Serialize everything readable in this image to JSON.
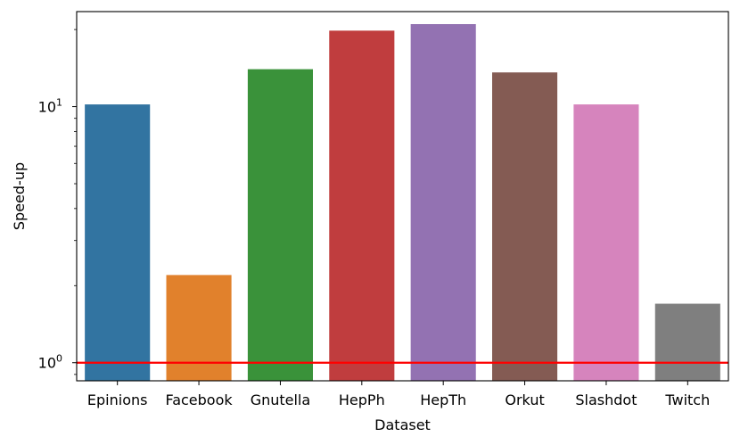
{
  "chart_data": {
    "type": "bar",
    "xlabel": "Dataset",
    "ylabel": "Speed-up",
    "yscale": "log",
    "ylim": [
      0.85,
      23.5
    ],
    "categories": [
      "Epinions",
      "Facebook",
      "Gnutella",
      "HepPh",
      "HepTh",
      "Orkut",
      "Slashdot",
      "Twitch"
    ],
    "values": [
      10.2,
      2.2,
      14.0,
      19.8,
      21.0,
      13.6,
      10.2,
      1.7
    ],
    "colors": [
      "#3274a1",
      "#e1812c",
      "#3a923a",
      "#c03d3e",
      "#9372b2",
      "#845b53",
      "#d684bd",
      "#7f7f7f"
    ],
    "y_ticks": [
      {
        "value": 1,
        "base": "10",
        "exp": "0"
      },
      {
        "value": 10,
        "base": "10",
        "exp": "1"
      }
    ],
    "reference_line": {
      "y": 1,
      "color": "#ff0000"
    },
    "grid": false,
    "legend": "none"
  }
}
